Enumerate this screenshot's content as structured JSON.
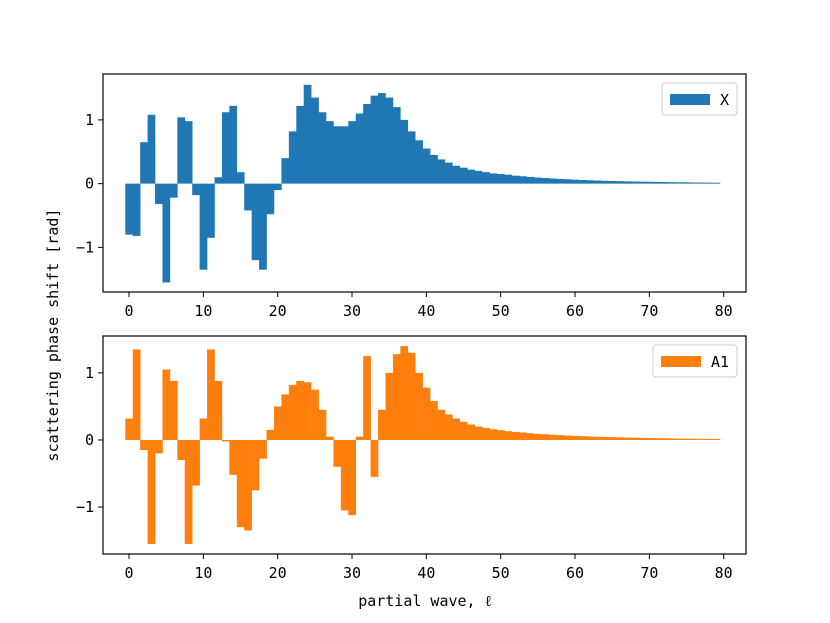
{
  "chart_data": [
    {
      "type": "bar",
      "series": [
        {
          "name": "X",
          "color": "#1f77b4",
          "x": [
            0,
            1,
            2,
            3,
            4,
            5,
            6,
            7,
            8,
            9,
            10,
            11,
            12,
            13,
            14,
            15,
            16,
            17,
            18,
            19,
            20,
            21,
            22,
            23,
            24,
            25,
            26,
            27,
            28,
            29,
            30,
            31,
            32,
            33,
            34,
            35,
            36,
            37,
            38,
            39,
            40,
            41,
            42,
            43,
            44,
            45,
            46,
            47,
            48,
            49,
            50,
            51,
            52,
            53,
            54,
            55,
            56,
            57,
            58,
            59,
            60,
            61,
            62,
            63,
            64,
            65,
            66,
            67,
            68,
            69,
            70,
            71,
            72,
            73,
            74,
            75,
            76,
            77,
            78,
            79
          ],
          "values": [
            -0.8,
            -0.82,
            0.65,
            1.08,
            -0.32,
            -1.55,
            -0.22,
            1.04,
            0.98,
            -0.18,
            -1.35,
            -0.85,
            0.1,
            1.12,
            1.22,
            0.18,
            -0.42,
            -1.2,
            -1.35,
            -0.48,
            -0.1,
            0.4,
            0.82,
            1.22,
            1.55,
            1.35,
            1.12,
            0.98,
            0.9,
            0.9,
            0.98,
            1.1,
            1.25,
            1.38,
            1.42,
            1.35,
            1.2,
            1.0,
            0.82,
            0.68,
            0.55,
            0.45,
            0.38,
            0.33,
            0.28,
            0.25,
            0.22,
            0.2,
            0.18,
            0.16,
            0.15,
            0.14,
            0.125,
            0.115,
            0.105,
            0.095,
            0.088,
            0.08,
            0.074,
            0.068,
            0.062,
            0.057,
            0.053,
            0.049,
            0.045,
            0.042,
            0.039,
            0.036,
            0.033,
            0.031,
            0.029,
            0.027,
            0.025,
            0.023,
            0.021,
            0.02,
            0.018,
            0.017,
            0.016,
            0.015
          ]
        }
      ],
      "xlim": [
        -3.5,
        83
      ],
      "ylim": [
        -1.7,
        1.72
      ],
      "xticks": [
        0,
        10,
        20,
        30,
        40,
        50,
        60,
        70,
        80
      ],
      "yticks": [
        -1,
        0,
        1
      ],
      "xtick_labels": [
        "0",
        "10",
        "20",
        "30",
        "40",
        "50",
        "60",
        "70",
        "80"
      ],
      "ytick_labels": [
        "−1",
        "0",
        "1"
      ],
      "legend_position": "top-right"
    },
    {
      "type": "bar",
      "series": [
        {
          "name": "A1",
          "color": "#ff7f0e",
          "x": [
            0,
            1,
            2,
            3,
            4,
            5,
            6,
            7,
            8,
            9,
            10,
            11,
            12,
            13,
            14,
            15,
            16,
            17,
            18,
            19,
            20,
            21,
            22,
            23,
            24,
            25,
            26,
            27,
            28,
            29,
            30,
            31,
            32,
            33,
            34,
            35,
            36,
            37,
            38,
            39,
            40,
            41,
            42,
            43,
            44,
            45,
            46,
            47,
            48,
            49,
            50,
            51,
            52,
            53,
            54,
            55,
            56,
            57,
            58,
            59,
            60,
            61,
            62,
            63,
            64,
            65,
            66,
            67,
            68,
            69,
            70,
            71,
            72,
            73,
            74,
            75,
            76,
            77,
            78,
            79
          ],
          "values": [
            0.32,
            1.35,
            -0.15,
            -1.55,
            -0.2,
            1.05,
            0.88,
            -0.3,
            -1.55,
            -0.68,
            0.32,
            1.35,
            0.88,
            -0.02,
            -0.52,
            -1.3,
            -1.35,
            -0.75,
            -0.28,
            0.15,
            0.5,
            0.68,
            0.82,
            0.88,
            0.86,
            0.75,
            0.45,
            0.05,
            -0.4,
            -1.05,
            -1.12,
            0.05,
            1.25,
            -0.55,
            0.45,
            1.0,
            1.28,
            1.4,
            1.3,
            1.0,
            0.78,
            0.58,
            0.45,
            0.38,
            0.32,
            0.27,
            0.23,
            0.2,
            0.18,
            0.16,
            0.145,
            0.13,
            0.12,
            0.11,
            0.1,
            0.09,
            0.085,
            0.078,
            0.072,
            0.066,
            0.061,
            0.056,
            0.052,
            0.048,
            0.045,
            0.042,
            0.039,
            0.036,
            0.034,
            0.031,
            0.029,
            0.027,
            0.025,
            0.023,
            0.021,
            0.02,
            0.018,
            0.017,
            0.016,
            0.015
          ]
        }
      ],
      "xlim": [
        -3.5,
        83
      ],
      "ylim": [
        -1.7,
        1.55
      ],
      "xticks": [
        0,
        10,
        20,
        30,
        40,
        50,
        60,
        70,
        80
      ],
      "yticks": [
        -1,
        0,
        1
      ],
      "xtick_labels": [
        "0",
        "10",
        "20",
        "30",
        "40",
        "50",
        "60",
        "70",
        "80"
      ],
      "ytick_labels": [
        "−1",
        "0",
        "1"
      ],
      "legend_position": "top-right"
    }
  ],
  "shared": {
    "ylabel": "scattering phase shift [rad]",
    "xlabel": "partial wave, ℓ"
  }
}
